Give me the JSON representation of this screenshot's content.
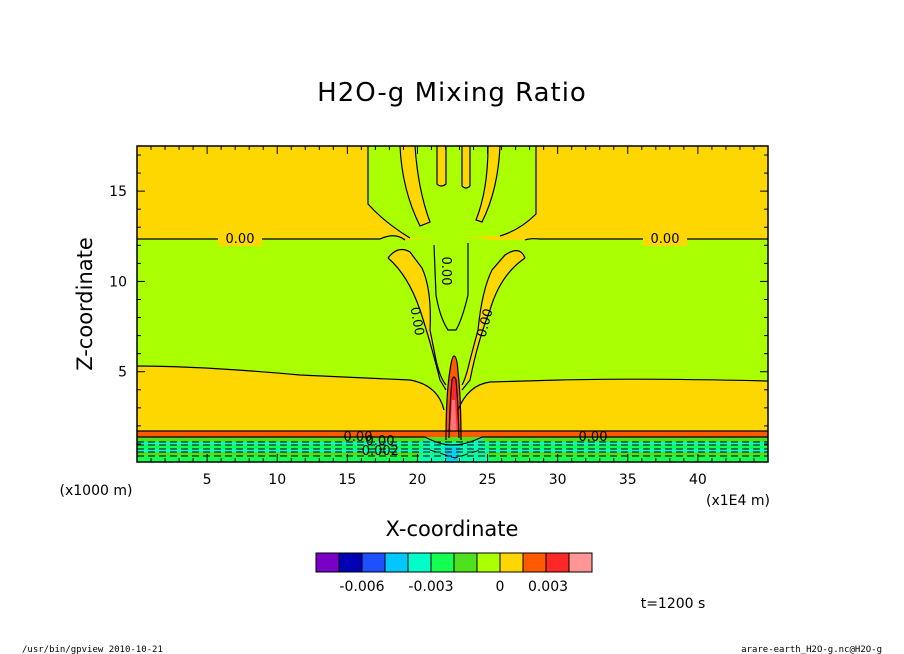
{
  "chart_data": {
    "type": "heatmap",
    "title": "H2O-g Mixing Ratio",
    "xlabel": "X-coordinate",
    "ylabel": "Z-coordinate",
    "x_unit": "(x1E4 m)",
    "y_unit": "(x1000 m)",
    "xlim": [
      0,
      45
    ],
    "ylim": [
      0,
      17.5
    ],
    "x_ticks": [
      "5",
      "10",
      "15",
      "20",
      "25",
      "30",
      "35",
      "40"
    ],
    "y_ticks": [
      "5",
      "10",
      "15"
    ],
    "contour_labels": [
      "0.00",
      "0.00",
      "0.00",
      "0.00",
      "0.00",
      "0.00",
      "0.00",
      "0.00",
      "-0.002"
    ],
    "colorbar": {
      "colors": [
        "#7a00c8",
        "#0000b4",
        "#1e50ff",
        "#00c8ff",
        "#00ffc8",
        "#14ff50",
        "#50e11e",
        "#aaff00",
        "#ffd700",
        "#ff5a00",
        "#ff2828",
        "#ff9696"
      ],
      "tick_labels": [
        "-0.006",
        "-0.003",
        "0",
        "0.003"
      ]
    },
    "time_label": "t=1200 s"
  },
  "footer": {
    "left": "/usr/bin/gpview  2010-10-21",
    "right": "arare-earth_H2O-g.nc@H2O-g"
  }
}
